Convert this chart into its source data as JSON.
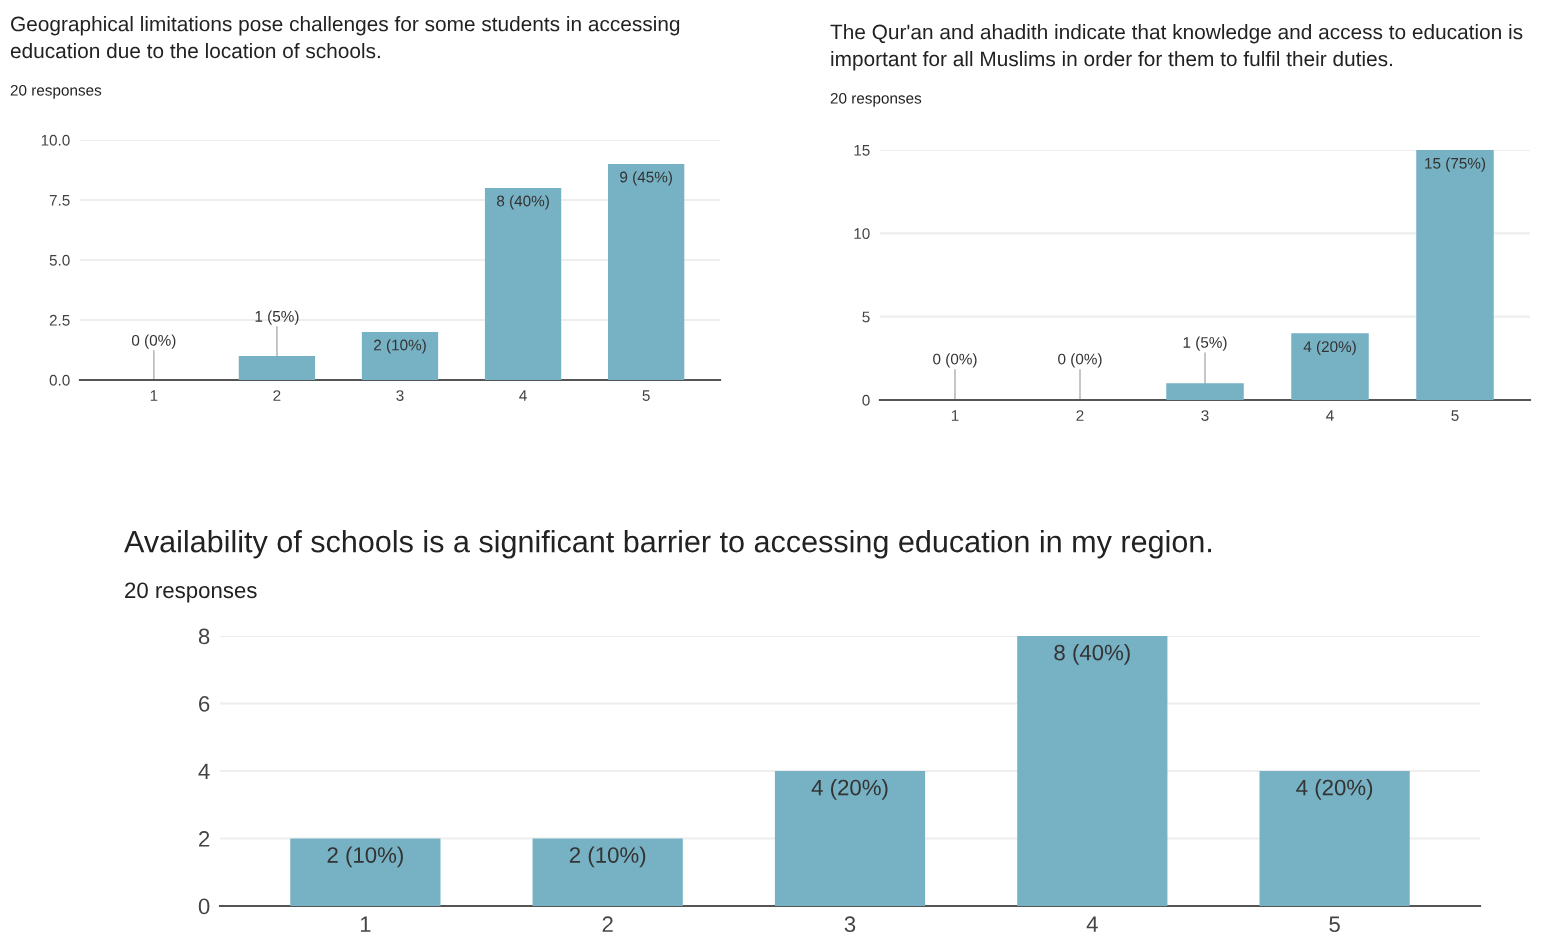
{
  "chart_data": [
    {
      "type": "bar",
      "title": "Geographical limitations pose challenges for some students in accessing education due to the location of schools.",
      "subtitle": "20 responses",
      "categories": [
        "1",
        "2",
        "3",
        "4",
        "5"
      ],
      "values": [
        0,
        1,
        2,
        8,
        9
      ],
      "value_labels": [
        "0 (0%)",
        "1 (5%)",
        "2 (10%)",
        "8 (40%)",
        "9 (45%)"
      ],
      "color": "#77b1c4",
      "ylim": [
        0,
        10
      ],
      "yticks": [
        {
          "value": 0,
          "label": "0.0"
        },
        {
          "value": 2.5,
          "label": "2.5"
        },
        {
          "value": 5,
          "label": "5.0"
        },
        {
          "value": 7.5,
          "label": "7.5"
        },
        {
          "value": 10,
          "label": "10.0"
        }
      ],
      "grid": "y"
    },
    {
      "type": "bar",
      "title": "The Qur'an and ahadith indicate that knowledge and access to education is important for all Muslims in order for them to fulfil their duties.",
      "subtitle": "20 responses",
      "categories": [
        "1",
        "2",
        "3",
        "4",
        "5"
      ],
      "values": [
        0,
        0,
        1,
        4,
        15
      ],
      "value_labels": [
        "0 (0%)",
        "0 (0%)",
        "1 (5%)",
        "4 (20%)",
        "15 (75%)"
      ],
      "color": "#77b1c4",
      "ylim": [
        0,
        15
      ],
      "yticks": [
        0,
        5,
        10,
        15
      ],
      "grid": "y"
    },
    {
      "type": "bar",
      "title": "Availability of schools is a significant barrier to accessing education in my region.",
      "subtitle": "20 responses",
      "categories": [
        "1",
        "2",
        "3",
        "4",
        "5"
      ],
      "values": [
        2,
        2,
        4,
        8,
        4
      ],
      "value_labels": [
        "2 (10%)",
        "2 (10%)",
        "4 (20%)",
        "8 (40%)",
        "4 (20%)"
      ],
      "color": "#77b1c4",
      "ylim": [
        0,
        8
      ],
      "yticks": [
        0,
        2,
        4,
        6,
        8
      ],
      "grid": "y"
    }
  ]
}
